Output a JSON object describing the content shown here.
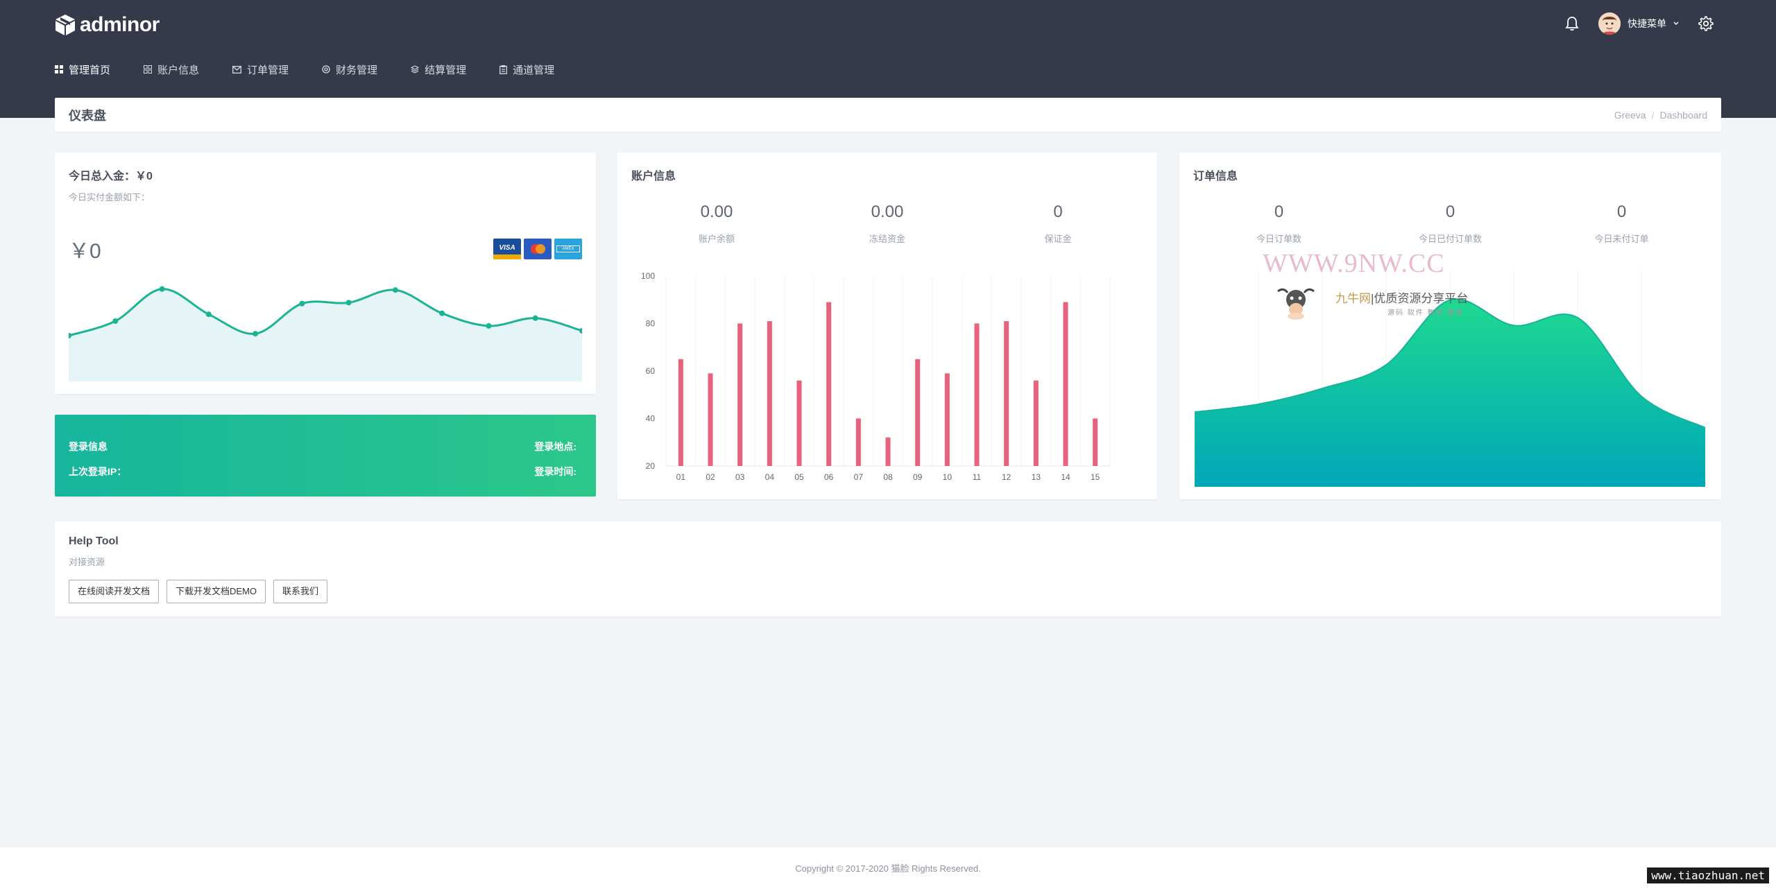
{
  "brand": {
    "name": "adminor"
  },
  "header": {
    "user_menu": "快捷菜单"
  },
  "nav": [
    {
      "label": "管理首页",
      "icon": "dashboard-icon",
      "active": true
    },
    {
      "label": "账户信息",
      "icon": "account-icon"
    },
    {
      "label": "订单管理",
      "icon": "mail-icon"
    },
    {
      "label": "财务管理",
      "icon": "finance-icon"
    },
    {
      "label": "结算管理",
      "icon": "layers-icon"
    },
    {
      "label": "通道管理",
      "icon": "clipboard-icon"
    }
  ],
  "page": {
    "title": "仪表盘",
    "breadcrumb": [
      "Greeva",
      "Dashboard"
    ]
  },
  "today": {
    "title": "今日总入金：￥0",
    "subtitle": "今日实付金额如下：",
    "amount": "￥0",
    "card_brands": [
      "VISA",
      "MasterCard",
      "AMERICAN EXPRESS"
    ]
  },
  "login": {
    "info_label": "登录信息",
    "location_label": "登录地点:",
    "ip_label": "上次登录IP：",
    "time_label": "登录时间:"
  },
  "account": {
    "title": "账户信息",
    "stats": [
      {
        "value": "0.00",
        "label": "账户余额"
      },
      {
        "value": "0.00",
        "label": "冻结资金"
      },
      {
        "value": "0",
        "label": "保证金"
      }
    ]
  },
  "order": {
    "title": "订单信息",
    "stats": [
      {
        "value": "0",
        "label": "今日订单数"
      },
      {
        "value": "0",
        "label": "今日已付订单数"
      },
      {
        "value": "0",
        "label": "今日未付订单"
      }
    ]
  },
  "help": {
    "title": "Help Tool",
    "subtitle": "对接资源",
    "buttons": [
      "在线阅读开发文档",
      "下载开发文档DEMO",
      "联系我们"
    ]
  },
  "footer": {
    "copyright": "Copyright © 2017-2020 猫脸 Rights Reserved."
  },
  "watermark": {
    "title": "WWW.9NW.CC",
    "name": "九牛网",
    "slogan": "优质资源分享平台",
    "tags": "源码 软件 教程 模板"
  },
  "badge": "www.tiaozhuan.net",
  "chart_data": [
    {
      "type": "line",
      "name": "spark",
      "values": [
        40,
        55,
        88,
        62,
        42,
        73,
        74,
        87,
        63,
        50,
        58,
        45
      ],
      "ylim": [
        0,
        100
      ],
      "color": "#1ab394",
      "fill": "#e4f4f7"
    },
    {
      "type": "bar",
      "categories": [
        "01",
        "02",
        "03",
        "04",
        "05",
        "06",
        "07",
        "08",
        "09",
        "10",
        "11",
        "12",
        "13",
        "14",
        "15"
      ],
      "values": [
        65,
        59,
        80,
        81,
        56,
        89,
        40,
        32,
        65,
        59,
        80,
        81,
        56,
        89,
        40
      ],
      "ylim": [
        20,
        100
      ],
      "yticks": [
        20,
        40,
        60,
        80,
        100
      ],
      "color": "#e9617b"
    },
    {
      "type": "area",
      "values": [
        38,
        42,
        50,
        62,
        95,
        82,
        86,
        46,
        30
      ],
      "ylim": [
        0,
        110
      ],
      "gradient": [
        "#1fd990",
        "#00a7b8"
      ]
    }
  ]
}
